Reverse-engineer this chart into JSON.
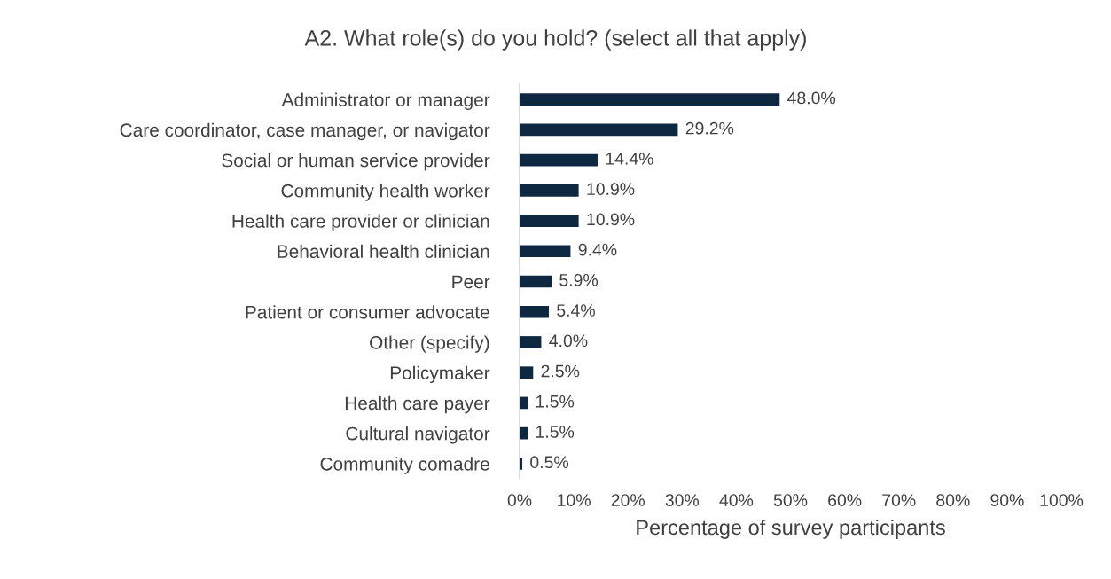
{
  "chart_data": {
    "type": "bar",
    "orientation": "horizontal",
    "title": "A2. What role(s) do you hold? (select all that apply)",
    "xlabel": "Percentage of survey participants",
    "categories": [
      "Administrator or manager",
      "Care coordinator, case manager, or navigator",
      "Social or human service provider",
      "Community health worker",
      "Health care provider or clinician",
      "Behavioral health clinician",
      "Peer",
      "Patient or consumer advocate",
      "Other (specify)",
      "Policymaker",
      "Health care payer",
      "Cultural navigator",
      "Community comadre"
    ],
    "values": [
      48.0,
      29.2,
      14.4,
      10.9,
      10.9,
      9.4,
      5.9,
      5.4,
      4.0,
      2.5,
      1.5,
      1.5,
      0.5
    ],
    "value_labels": [
      "48.0%",
      "29.2%",
      "14.4%",
      "10.9%",
      "10.9%",
      "9.4%",
      "5.9%",
      "5.4%",
      "4.0%",
      "2.5%",
      "1.5%",
      "1.5%",
      "0.5%"
    ],
    "color": "#0e2841",
    "xlim": [
      0,
      100
    ],
    "xticks": [
      {
        "value": 0,
        "label": "0%"
      },
      {
        "value": 10,
        "label": "10%"
      },
      {
        "value": 20,
        "label": "20%"
      },
      {
        "value": 30,
        "label": "30%"
      },
      {
        "value": 40,
        "label": "40%"
      },
      {
        "value": 50,
        "label": "50%"
      },
      {
        "value": 60,
        "label": "60%"
      },
      {
        "value": 70,
        "label": "70%"
      },
      {
        "value": 80,
        "label": "80%"
      },
      {
        "value": 90,
        "label": "90%"
      },
      {
        "value": 100,
        "label": "100%"
      }
    ],
    "grid": false,
    "legend": false
  }
}
